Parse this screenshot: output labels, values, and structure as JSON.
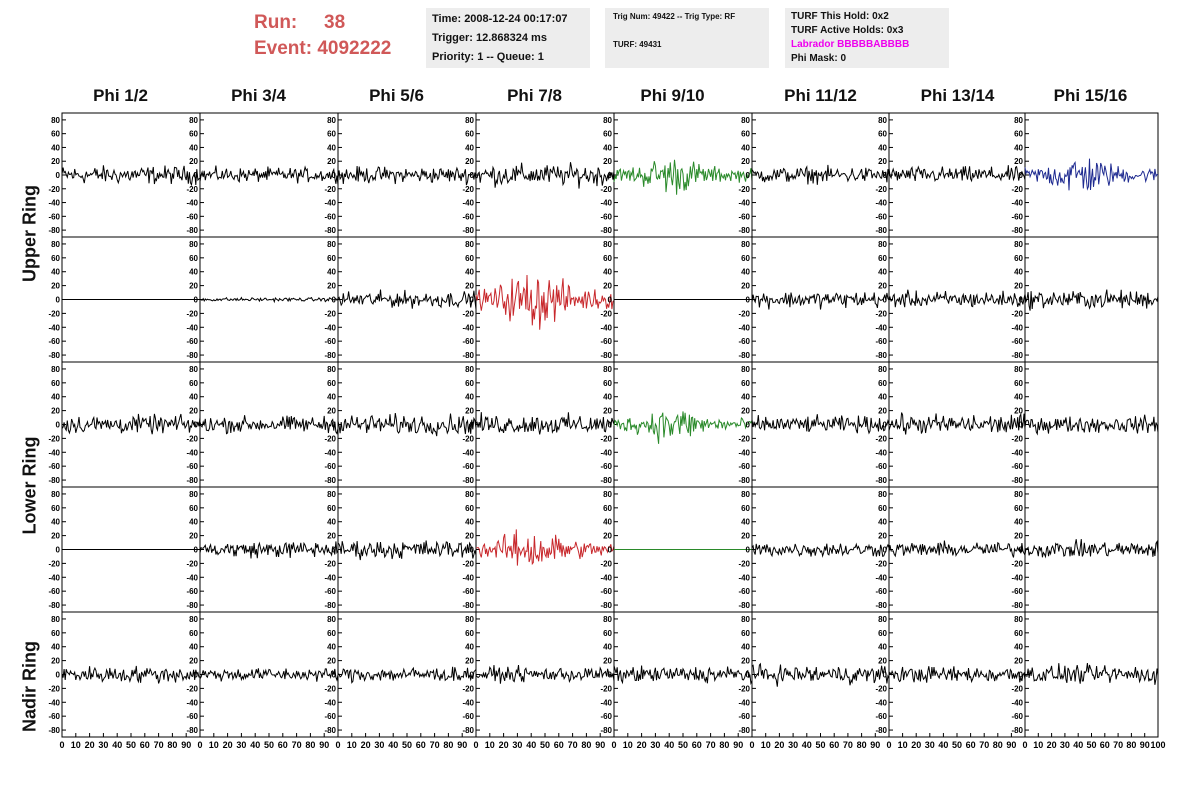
{
  "header": {
    "run_label": "Run:",
    "run_value": "38",
    "event_label": "Event:",
    "event_value": "4092222",
    "time_line": "Time: 2008-12-24 00:17:07",
    "trigger_line": "Trigger: 12.868324 ms",
    "priority_line": "Priority: 1 -- Queue: 1",
    "trig_line": "Trig Num: 49422 -- Trig Type: RF",
    "turf_line": "TURF: 49431",
    "turf_hold_line": "TURF This Hold: 0x2",
    "turf_active_line": "TURF Active Holds: 0x3",
    "labrador_line": "Labrador BBBBBABBBB",
    "phi_mask_line": "Phi Mask: 0"
  },
  "colors": {
    "title_red": "#d05858",
    "labrador_magenta": "#ee00ee",
    "trace_black": "#000000",
    "trace_green": "#2a8a2a",
    "trace_red": "#c8282c",
    "trace_blue": "#1e2a90"
  },
  "chart_data": {
    "type": "line",
    "columns": [
      "Phi 1/2",
      "Phi 3/4",
      "Phi 5/6",
      "Phi 7/8",
      "Phi 9/10",
      "Phi 11/12",
      "Phi 13/14",
      "Phi 15/16"
    ],
    "ring_labels": [
      "Upper Ring",
      "Lower Ring",
      "Nadir Ring"
    ],
    "rows": 5,
    "ylim": [
      -90,
      90
    ],
    "yticks": [
      80,
      60,
      40,
      20,
      0,
      -20,
      -40,
      -60,
      -80
    ],
    "xlim": [
      0,
      100
    ],
    "xticks": [
      0,
      10,
      20,
      30,
      40,
      50,
      60,
      70,
      80,
      90
    ],
    "xtick_last_panel": [
      0,
      10,
      20,
      30,
      40,
      50,
      60,
      70,
      80,
      90,
      100
    ],
    "panels": [
      [
        {
          "color": "black",
          "amp": 20
        },
        {
          "color": "black",
          "amp": 16
        },
        {
          "color": "black",
          "amp": 18
        },
        {
          "color": "black",
          "amp": 24
        },
        {
          "color": "green",
          "amp": 32,
          "pulse": true
        },
        {
          "color": "black",
          "amp": 18
        },
        {
          "color": "black",
          "amp": 18
        },
        {
          "color": "blue",
          "amp": 34,
          "pulse": true
        }
      ],
      [
        {
          "color": "black",
          "amp": 0,
          "flat": true
        },
        {
          "color": "black",
          "amp": 4
        },
        {
          "color": "black",
          "amp": 18
        },
        {
          "color": "red",
          "amp": 48,
          "pulse": true
        },
        {
          "color": "black",
          "amp": 0,
          "flat": true
        },
        {
          "color": "black",
          "amp": 18
        },
        {
          "color": "black",
          "amp": 18
        },
        {
          "color": "black",
          "amp": 20
        }
      ],
      [
        {
          "color": "black",
          "amp": 20
        },
        {
          "color": "black",
          "amp": 18
        },
        {
          "color": "black",
          "amp": 22
        },
        {
          "color": "black",
          "amp": 22
        },
        {
          "color": "green",
          "amp": 30,
          "pulse": true
        },
        {
          "color": "black",
          "amp": 18
        },
        {
          "color": "black",
          "amp": 22
        },
        {
          "color": "black",
          "amp": 18
        }
      ],
      [
        {
          "color": "black",
          "amp": 0,
          "flat": true
        },
        {
          "color": "black",
          "amp": 18
        },
        {
          "color": "black",
          "amp": 20
        },
        {
          "color": "red",
          "amp": 36,
          "pulse": true
        },
        {
          "color": "green",
          "amp": 0,
          "flat": true
        },
        {
          "color": "black",
          "amp": 16
        },
        {
          "color": "black",
          "amp": 16
        },
        {
          "color": "black",
          "amp": 18
        }
      ],
      [
        {
          "color": "black",
          "amp": 18
        },
        {
          "color": "black",
          "amp": 14
        },
        {
          "color": "black",
          "amp": 16
        },
        {
          "color": "black",
          "amp": 16
        },
        {
          "color": "black",
          "amp": 18
        },
        {
          "color": "black",
          "amp": 20
        },
        {
          "color": "black",
          "amp": 18
        },
        {
          "color": "black",
          "amp": 20
        }
      ]
    ]
  }
}
